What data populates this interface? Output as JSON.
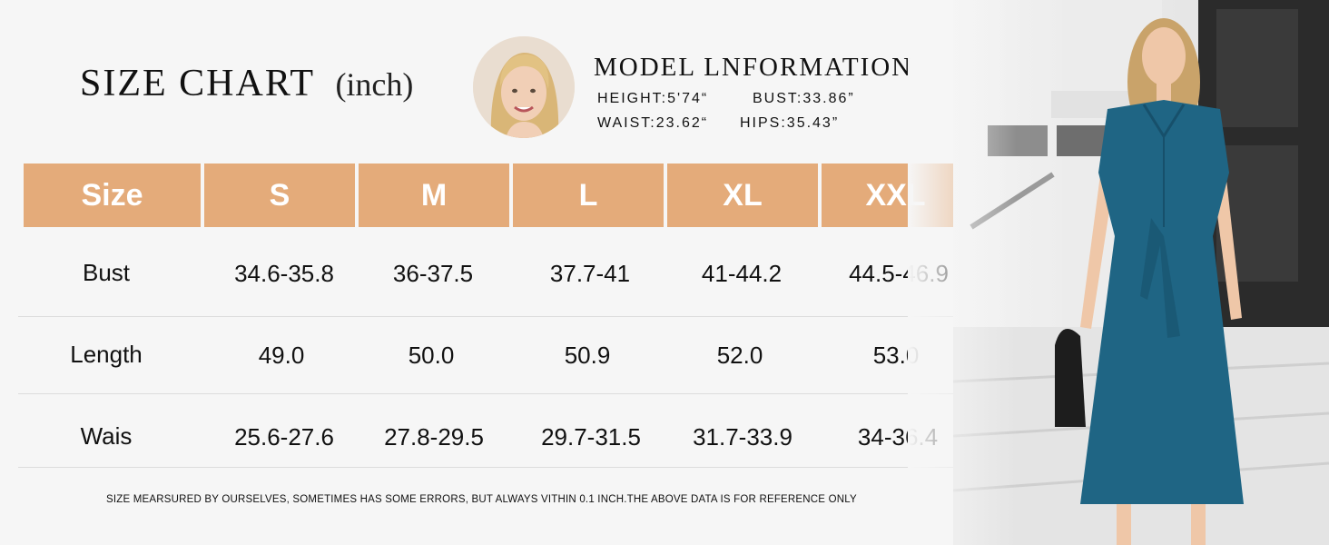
{
  "header": {
    "title": "SIZE CHART",
    "unit": "(inch)"
  },
  "model": {
    "heading": "MODEL LNFORMATION",
    "height": "HEIGHT:5'74“",
    "bust": "BUST:33.86”",
    "waist": "WAIST:23.62“",
    "hips": "HIPS:35.43”"
  },
  "table": {
    "header_color": "#e4ab7a",
    "columns": [
      "Size",
      "S",
      "M",
      "L",
      "XL",
      "XXL"
    ],
    "rows": [
      {
        "label": "Bust",
        "values": [
          "34.6-35.8",
          "36-37.5",
          "37.7-41",
          "41-44.2",
          "44.5-46.9"
        ]
      },
      {
        "label": "Length",
        "values": [
          "49.0",
          "50.0",
          "50.9",
          "52.0",
          "53.0"
        ]
      },
      {
        "label": "Wais",
        "values": [
          "25.6-27.6",
          "27.8-29.5",
          "29.7-31.5",
          "31.7-33.9",
          "34-36.4"
        ]
      }
    ]
  },
  "footnote": "SIZE MEARSURED BY OURSELVES, SOMETIMES HAS SOME ERRORS, BUT ALWAYS VITHIN 0.1 INCH.THE ABOVE DATA IS FOR REFERENCE ONLY",
  "dress_color": "#1f6584"
}
